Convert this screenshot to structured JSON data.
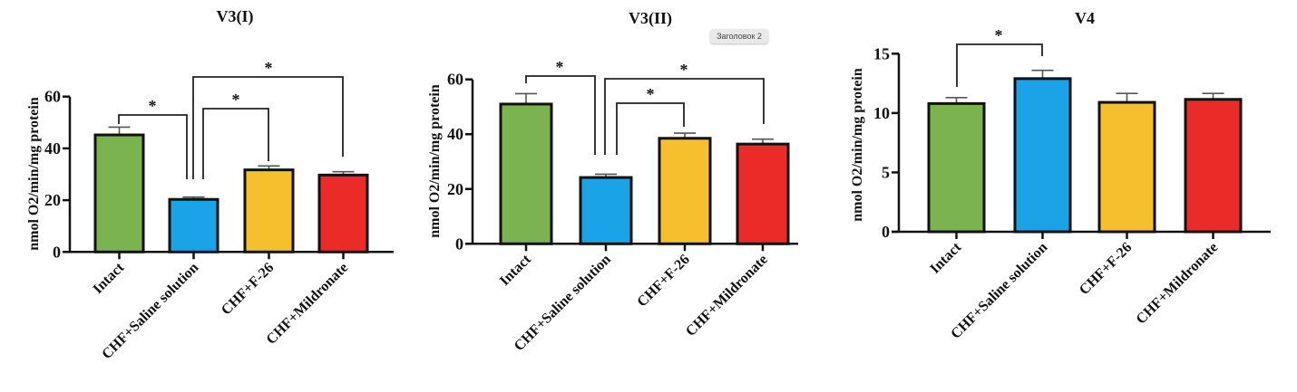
{
  "tooltip": {
    "text": "Заголовок 2"
  },
  "colors": {
    "Intact": "#7bb34f",
    "CHF+Saline solution": "#1ba3e8",
    "CHF+F-26": "#f6bf2e",
    "CHF+Mildronate": "#eb2b27",
    "axis": "#111111",
    "bracket": "#222222"
  },
  "chart_data": [
    {
      "type": "bar",
      "title": "V3(I)",
      "xlabel": "",
      "ylabel": "nmol O2/min/mg protein",
      "categories": [
        "Intact",
        "CHF+Saline solution",
        "CHF+F-26",
        "CHF+Mildronate"
      ],
      "values": [
        45.2,
        20.3,
        31.7,
        29.7
      ],
      "errors": [
        3.0,
        0.9,
        1.5,
        1.3
      ],
      "ylim": [
        0,
        60
      ],
      "yticks": [
        "0",
        "20",
        "40",
        "60"
      ],
      "grid": false,
      "significance": [
        {
          "from": "Intact",
          "to": "CHF+Saline solution",
          "label": "*"
        },
        {
          "from": "CHF+Saline solution",
          "to": "CHF+F-26",
          "label": "*"
        },
        {
          "from": "CHF+Saline solution",
          "to": "CHF+Mildronate",
          "label": "*"
        }
      ]
    },
    {
      "type": "bar",
      "title": "V3(II)",
      "xlabel": "",
      "ylabel": "nmol O2/min/mg protein",
      "categories": [
        "Intact",
        "CHF+Saline solution",
        "CHF+F-26",
        "CHF+Mildronate"
      ],
      "values": [
        51.0,
        24.2,
        38.5,
        36.4
      ],
      "errors": [
        3.8,
        1.2,
        1.9,
        1.8
      ],
      "ylim": [
        0,
        60
      ],
      "yticks": [
        "0",
        "20",
        "40",
        "60"
      ],
      "grid": false,
      "significance": [
        {
          "from": "Intact",
          "to": "CHF+Saline solution",
          "label": "*"
        },
        {
          "from": "CHF+Saline solution",
          "to": "CHF+F-26",
          "label": "*"
        },
        {
          "from": "CHF+Saline solution",
          "to": "CHF+Mildronate",
          "label": "*"
        }
      ]
    },
    {
      "type": "bar",
      "title": "V4",
      "xlabel": "",
      "ylabel": "nmol O2/min/mg protein",
      "categories": [
        "Intact",
        "CHF+Saline solution",
        "CHF+F-26",
        "CHF+Mildronate"
      ],
      "values": [
        10.8,
        12.9,
        10.9,
        11.15
      ],
      "errors": [
        0.5,
        0.7,
        0.75,
        0.5
      ],
      "ylim": [
        0,
        15
      ],
      "yticks": [
        "0",
        "5",
        "10",
        "15"
      ],
      "grid": false,
      "significance": [
        {
          "from": "Intact",
          "to": "CHF+Saline solution",
          "label": "*"
        }
      ]
    }
  ]
}
